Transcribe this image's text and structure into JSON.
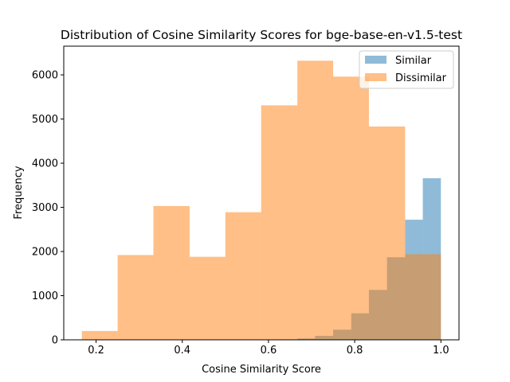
{
  "chart_data": {
    "type": "histogram",
    "title": "Distribution of Cosine Similarity Scores for bge-base-en-v1.5-test",
    "xlabel": "Cosine Similarity Score",
    "ylabel": "Frequency",
    "xlim": [
      0.125,
      1.042
    ],
    "ylim": [
      0,
      6650
    ],
    "xticks": [
      0.2,
      0.4,
      0.6,
      0.8,
      1.0
    ],
    "xtick_labels": [
      "0.2",
      "0.4",
      "0.6",
      "0.8",
      "1.0"
    ],
    "yticks": [
      0,
      1000,
      2000,
      3000,
      4000,
      5000,
      6000
    ],
    "ytick_labels": [
      "0",
      "1000",
      "2000",
      "3000",
      "4000",
      "5000",
      "6000"
    ],
    "grid": false,
    "legend_position": "top-right",
    "series": [
      {
        "name": "Similar",
        "color": "#1f77b4",
        "opacity": 0.5,
        "bin_edges": [
          0.583,
          0.625,
          0.667,
          0.708,
          0.75,
          0.792,
          0.833,
          0.875,
          0.917,
          0.958,
          1.0
        ],
        "counts": [
          5,
          10,
          30,
          90,
          230,
          600,
          1130,
          1870,
          2720,
          3660
        ]
      },
      {
        "name": "Dissimilar",
        "color": "#ff7f0e",
        "opacity": 0.5,
        "bin_edges": [
          0.167,
          0.25,
          0.333,
          0.417,
          0.5,
          0.583,
          0.667,
          0.75,
          0.833,
          0.917,
          1.0
        ],
        "counts": [
          200,
          1920,
          3030,
          1880,
          2890,
          5310,
          6320,
          5960,
          4830,
          1940
        ]
      }
    ]
  }
}
